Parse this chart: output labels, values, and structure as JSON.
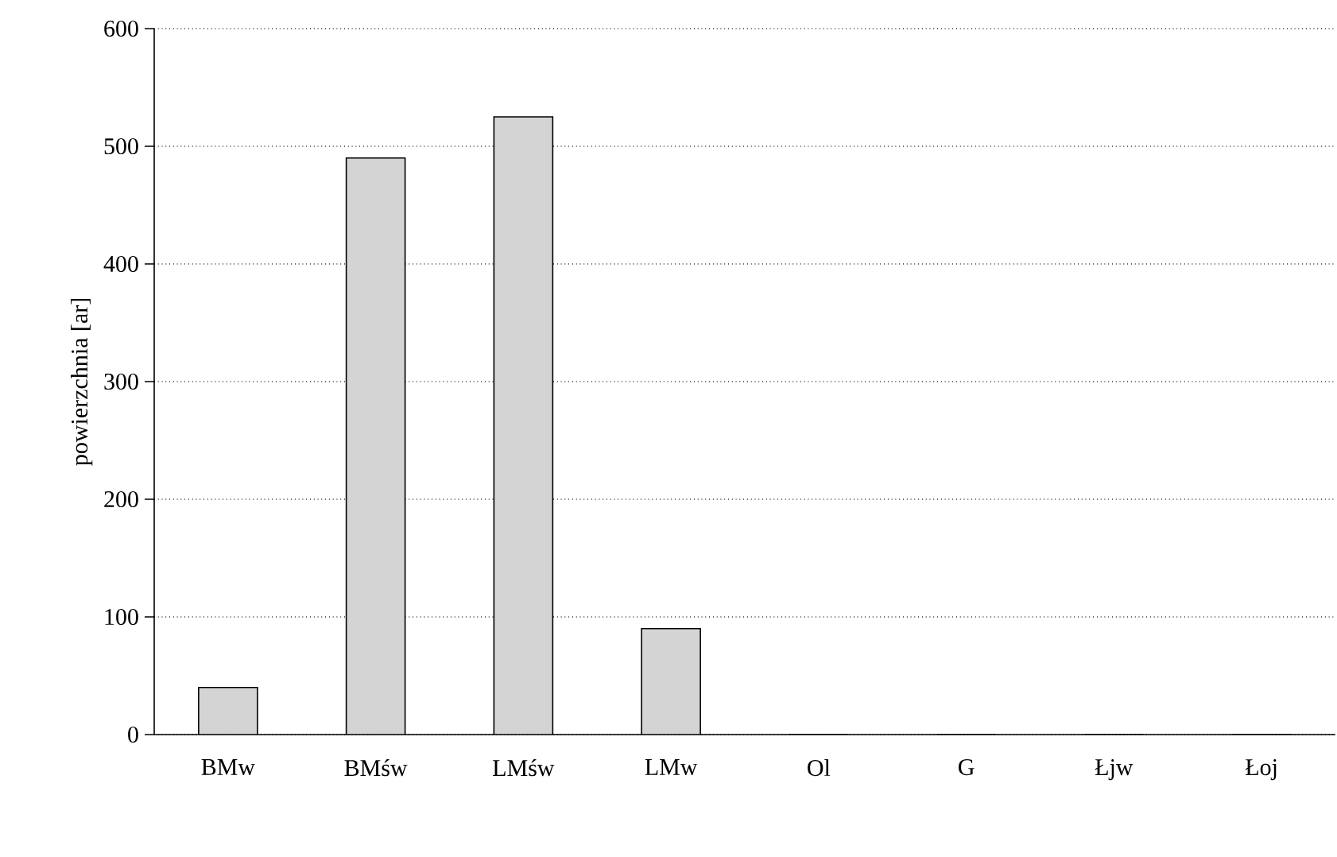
{
  "chart_data": {
    "type": "bar",
    "ylabel": "powierzchnia [ar]",
    "categories": [
      "BMw",
      "BMśw",
      "LMśw",
      "LMw",
      "Ol",
      "G",
      "Łjw",
      "Łoj"
    ],
    "values": [
      40,
      490,
      525,
      90,
      0,
      0,
      0,
      0
    ],
    "color": "#d4d4d4",
    "ylim": [
      0,
      600
    ],
    "yticks": [
      0,
      100,
      200,
      300,
      400,
      500,
      600
    ],
    "grid": "y"
  }
}
